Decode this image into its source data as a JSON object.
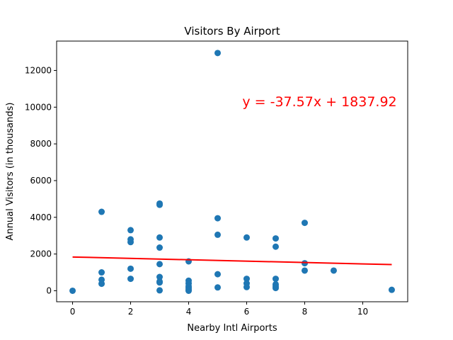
{
  "chart_data": {
    "type": "scatter",
    "title": "Visitors By Airport",
    "xlabel": "Nearby Intl Airports",
    "ylabel": "Annual Visitors (in thousands)",
    "xlim": [
      -0.55,
      11.55
    ],
    "ylim": [
      -600,
      13600
    ],
    "xticks": [
      0,
      2,
      4,
      6,
      8,
      10
    ],
    "yticks": [
      0,
      2000,
      4000,
      6000,
      8000,
      10000,
      12000
    ],
    "grid": false,
    "legend": "none",
    "points": [
      {
        "x": 0,
        "y": 0
      },
      {
        "x": 1,
        "y": 4300
      },
      {
        "x": 1,
        "y": 1000
      },
      {
        "x": 1,
        "y": 600
      },
      {
        "x": 1,
        "y": 380
      },
      {
        "x": 2,
        "y": 3300
      },
      {
        "x": 2,
        "y": 2800
      },
      {
        "x": 2,
        "y": 2650
      },
      {
        "x": 2,
        "y": 1200
      },
      {
        "x": 2,
        "y": 650
      },
      {
        "x": 3,
        "y": 4750
      },
      {
        "x": 3,
        "y": 4680
      },
      {
        "x": 3,
        "y": 2900
      },
      {
        "x": 3,
        "y": 2350
      },
      {
        "x": 3,
        "y": 1450
      },
      {
        "x": 3,
        "y": 750
      },
      {
        "x": 3,
        "y": 500
      },
      {
        "x": 3,
        "y": 450
      },
      {
        "x": 3,
        "y": 20
      },
      {
        "x": 4,
        "y": 1600
      },
      {
        "x": 4,
        "y": 550
      },
      {
        "x": 4,
        "y": 400
      },
      {
        "x": 4,
        "y": 250
      },
      {
        "x": 4,
        "y": 150
      },
      {
        "x": 4,
        "y": 50
      },
      {
        "x": 4,
        "y": 0
      },
      {
        "x": 5,
        "y": 12950
      },
      {
        "x": 5,
        "y": 3950
      },
      {
        "x": 5,
        "y": 3050
      },
      {
        "x": 5,
        "y": 900
      },
      {
        "x": 5,
        "y": 180
      },
      {
        "x": 6,
        "y": 2900
      },
      {
        "x": 6,
        "y": 650
      },
      {
        "x": 6,
        "y": 400
      },
      {
        "x": 6,
        "y": 200
      },
      {
        "x": 7,
        "y": 2850
      },
      {
        "x": 7,
        "y": 2400
      },
      {
        "x": 7,
        "y": 650
      },
      {
        "x": 7,
        "y": 350
      },
      {
        "x": 7,
        "y": 250
      },
      {
        "x": 7,
        "y": 150
      },
      {
        "x": 8,
        "y": 3700
      },
      {
        "x": 8,
        "y": 1500
      },
      {
        "x": 8,
        "y": 1100
      },
      {
        "x": 9,
        "y": 1100
      },
      {
        "x": 11,
        "y": 50
      }
    ],
    "regression": {
      "slope": -37.57,
      "intercept": 1837.92,
      "x_range": [
        0,
        11
      ],
      "equation_label": "y = -37.57x + 1837.92",
      "label_x": 5.85,
      "label_y": 10050
    },
    "colors": {
      "points": "#1f77b4",
      "line": "#ff0000",
      "annotation": "#ff0000"
    }
  }
}
